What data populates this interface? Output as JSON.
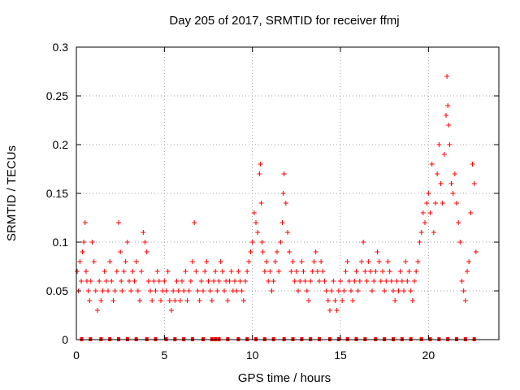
{
  "chart_data": {
    "type": "scatter",
    "title": "Day 205 of 2017, SRMTID for receiver ffmj",
    "xlabel": "GPS time / hours",
    "ylabel": "SRMTID / TECUs",
    "xlim": [
      0,
      24
    ],
    "ylim": [
      0,
      0.3
    ],
    "xticks": [
      0,
      5,
      10,
      15,
      20
    ],
    "xtick_labels": [
      "0",
      "5",
      "10",
      "15",
      "20"
    ],
    "yticks": [
      0,
      0.05,
      0.1,
      0.15,
      0.2,
      0.25,
      0.3
    ],
    "ytick_labels": [
      "0",
      "0.05",
      "0.1",
      "0.15",
      "0.2",
      "0.25",
      "0.3"
    ],
    "grid": true,
    "marker_color": "#ff0000",
    "series": [
      {
        "marker": "plus",
        "x": [
          0.05,
          0.12,
          0.2,
          0.28,
          0.35,
          0.42,
          0.5,
          0.55,
          0.6,
          0.68,
          0.75,
          0.82,
          0.9,
          1.0,
          1.1,
          1.2,
          1.3,
          1.4,
          1.5,
          1.6,
          1.7,
          1.8,
          1.9,
          2.0,
          2.1,
          2.2,
          2.3,
          2.4,
          2.5,
          2.55,
          2.6,
          2.7,
          2.8,
          2.9,
          3.0,
          3.1,
          3.2,
          3.3,
          3.4,
          3.5,
          3.6,
          3.7,
          3.8,
          3.9,
          4.0,
          4.1,
          4.2,
          4.3,
          4.4,
          4.5,
          4.6,
          4.7,
          4.8,
          4.9,
          5.0,
          5.1,
          5.2,
          5.3,
          5.4,
          5.5,
          5.6,
          5.7,
          5.8,
          5.9,
          6.0,
          6.1,
          6.2,
          6.3,
          6.4,
          6.5,
          6.6,
          6.7,
          6.8,
          6.9,
          7.0,
          7.1,
          7.2,
          7.3,
          7.4,
          7.5,
          7.6,
          7.7,
          7.8,
          7.9,
          8.0,
          8.1,
          8.2,
          8.3,
          8.4,
          8.5,
          8.6,
          8.7,
          8.8,
          8.9,
          9.0,
          9.1,
          9.2,
          9.3,
          9.4,
          9.5,
          9.6,
          9.7,
          9.8,
          9.9,
          10.0,
          10.1,
          10.2,
          10.3,
          10.4,
          10.45,
          10.5,
          10.55,
          10.6,
          10.7,
          10.8,
          10.9,
          11.0,
          11.1,
          11.2,
          11.3,
          11.4,
          11.5,
          11.6,
          11.7,
          11.75,
          11.8,
          11.9,
          12.0,
          12.1,
          12.2,
          12.3,
          12.4,
          12.5,
          12.6,
          12.7,
          12.8,
          12.9,
          13.0,
          13.1,
          13.2,
          13.3,
          13.4,
          13.5,
          13.6,
          13.7,
          13.8,
          13.9,
          14.0,
          14.1,
          14.2,
          14.3,
          14.4,
          14.5,
          14.6,
          14.7,
          14.8,
          14.9,
          15.0,
          15.1,
          15.2,
          15.3,
          15.4,
          15.5,
          15.6,
          15.7,
          15.8,
          15.9,
          16.0,
          16.1,
          16.2,
          16.3,
          16.4,
          16.5,
          16.6,
          16.7,
          16.8,
          16.9,
          17.0,
          17.1,
          17.2,
          17.3,
          17.4,
          17.5,
          17.6,
          17.7,
          17.8,
          17.9,
          18.0,
          18.1,
          18.2,
          18.3,
          18.4,
          18.5,
          18.6,
          18.7,
          18.8,
          18.9,
          19.0,
          19.1,
          19.2,
          19.3,
          19.4,
          19.5,
          19.6,
          19.7,
          19.8,
          19.9,
          20.0,
          20.1,
          20.2,
          20.3,
          20.4,
          20.5,
          20.6,
          20.7,
          20.8,
          20.9,
          21.0,
          21.05,
          21.1,
          21.15,
          21.2,
          21.3,
          21.4,
          21.5,
          21.6,
          21.7,
          21.8,
          21.9,
          22.0,
          22.1,
          22.2,
          22.3,
          22.4,
          22.5,
          22.6,
          22.7
        ],
        "y": [
          0.07,
          0.05,
          0.08,
          0.06,
          0.09,
          0.1,
          0.12,
          0.07,
          0.06,
          0.05,
          0.04,
          0.06,
          0.1,
          0.08,
          0.05,
          0.03,
          0.06,
          0.04,
          0.05,
          0.07,
          0.06,
          0.05,
          0.08,
          0.06,
          0.04,
          0.05,
          0.07,
          0.12,
          0.09,
          0.06,
          0.05,
          0.07,
          0.08,
          0.1,
          0.06,
          0.05,
          0.07,
          0.06,
          0.08,
          0.05,
          0.04,
          0.07,
          0.11,
          0.1,
          0.09,
          0.06,
          0.05,
          0.04,
          0.06,
          0.05,
          0.07,
          0.06,
          0.04,
          0.05,
          0.06,
          0.05,
          0.07,
          0.04,
          0.03,
          0.05,
          0.04,
          0.06,
          0.05,
          0.04,
          0.06,
          0.05,
          0.07,
          0.04,
          0.05,
          0.06,
          0.08,
          0.12,
          0.07,
          0.05,
          0.04,
          0.06,
          0.05,
          0.07,
          0.08,
          0.06,
          0.05,
          0.04,
          0.06,
          0.07,
          0.05,
          0.06,
          0.08,
          0.07,
          0.05,
          0.06,
          0.04,
          0.06,
          0.07,
          0.05,
          0.06,
          0.05,
          0.07,
          0.06,
          0.05,
          0.04,
          0.06,
          0.07,
          0.08,
          0.09,
          0.1,
          0.13,
          0.12,
          0.11,
          0.17,
          0.18,
          0.14,
          0.1,
          0.09,
          0.07,
          0.08,
          0.06,
          0.07,
          0.05,
          0.06,
          0.08,
          0.09,
          0.07,
          0.1,
          0.12,
          0.15,
          0.17,
          0.14,
          0.11,
          0.09,
          0.07,
          0.08,
          0.06,
          0.07,
          0.05,
          0.06,
          0.08,
          0.07,
          0.06,
          0.05,
          0.04,
          0.06,
          0.07,
          0.08,
          0.09,
          0.07,
          0.06,
          0.08,
          0.07,
          0.06,
          0.05,
          0.04,
          0.03,
          0.05,
          0.06,
          0.04,
          0.03,
          0.05,
          0.06,
          0.04,
          0.05,
          0.07,
          0.08,
          0.06,
          0.05,
          0.04,
          0.06,
          0.07,
          0.05,
          0.06,
          0.08,
          0.1,
          0.07,
          0.06,
          0.08,
          0.07,
          0.05,
          0.06,
          0.07,
          0.09,
          0.08,
          0.06,
          0.07,
          0.05,
          0.06,
          0.08,
          0.07,
          0.06,
          0.05,
          0.04,
          0.06,
          0.05,
          0.07,
          0.06,
          0.05,
          0.08,
          0.06,
          0.07,
          0.05,
          0.04,
          0.06,
          0.07,
          0.08,
          0.1,
          0.11,
          0.13,
          0.12,
          0.14,
          0.15,
          0.13,
          0.18,
          0.11,
          0.14,
          0.17,
          0.2,
          0.16,
          0.14,
          0.19,
          0.23,
          0.27,
          0.24,
          0.22,
          0.2,
          0.16,
          0.15,
          0.17,
          0.14,
          0.12,
          0.1,
          0.06,
          0.05,
          0.04,
          0.07,
          0.08,
          0.13,
          0.18,
          0.16,
          0.09
        ],
        "bottom_markers": [
          0.3,
          0.8,
          1.4,
          1.9,
          2.4,
          2.9,
          3.4,
          4.0,
          4.5,
          5.1,
          5.6,
          6.1,
          6.6,
          7.2,
          7.7,
          7.9,
          8.1,
          8.6,
          9.2,
          9.7,
          10.2,
          10.7,
          11.2,
          11.8,
          12.3,
          12.8,
          13.3,
          13.8,
          14.4,
          14.9,
          15.4,
          15.9,
          16.4,
          17.0,
          17.5,
          18.0,
          18.5,
          19.0,
          19.6,
          20.1,
          20.6,
          21.1,
          21.6,
          22.1,
          22.6
        ]
      }
    ]
  }
}
